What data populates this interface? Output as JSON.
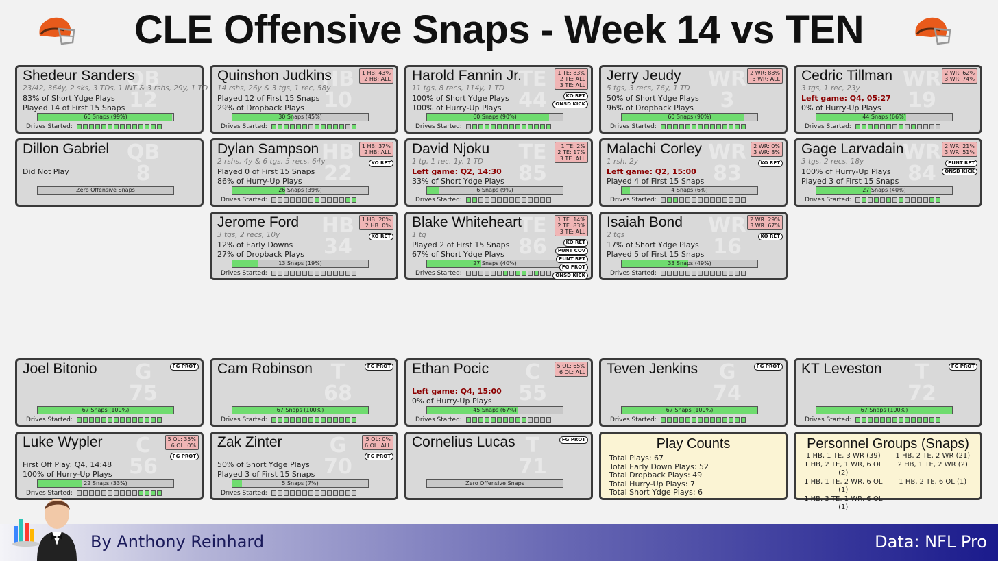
{
  "title": "CLE Offensive Snaps - Week 14 vs TEN",
  "footer": {
    "author": "By Anthony Reinhard",
    "source": "Data: NFL Pro"
  },
  "colors": {
    "bar_fill": "#6fdc6f",
    "card_bg": "#d9d9d9",
    "pos_box": "#f0b5b5",
    "info_bg": "#fbf4d4",
    "left_game": "#8b0000"
  },
  "drives_label": "Drives Started:",
  "players": [
    {
      "name": "Shedeur Sanders",
      "pos": "QB",
      "num": "12",
      "line1": "23/42, 364y, 2 sks, 3 TDs, 1 INT & 3 rshs, 29y, 1 TD",
      "line2": "83% of Short Ydge Plays",
      "line3": "Played 14 of First 15 Snaps",
      "snaps": "66 Snaps (99%)",
      "pct": 99,
      "drives": [
        1,
        1,
        1,
        1,
        1,
        1,
        1,
        1,
        1,
        1,
        1,
        1,
        1,
        1
      ],
      "posbox": [],
      "badges": []
    },
    {
      "name": "Quinshon Judkins",
      "pos": "HB",
      "num": "10",
      "line1": "14 rshs, 26y & 3 tgs, 1 rec, 58y",
      "line2": "Played 12 of First 15 Snaps",
      "line3": "29% of Dropback Plays",
      "snaps": "30 Snaps (45%)",
      "pct": 45,
      "drives": [
        1,
        1,
        1,
        1,
        1,
        1,
        0,
        1,
        1,
        1,
        1,
        1,
        0,
        1
      ],
      "posbox": [
        "1 HB: 43%",
        "2 HB: ALL"
      ],
      "badges": []
    },
    {
      "name": "Harold Fannin Jr.",
      "pos": "TE",
      "num": "44",
      "line1": "11 tgs, 8 recs, 114y, 1 TD",
      "line2": "100% of Short Ydge Plays",
      "line3": "100% of Hurry-Up Plays",
      "snaps": "60 Snaps (90%)",
      "pct": 90,
      "drives": [
        0,
        1,
        1,
        1,
        1,
        1,
        1,
        1,
        1,
        1,
        1,
        1,
        1,
        1
      ],
      "posbox": [
        "1 TE: 83%",
        "2 TE: ALL",
        "3 TE: ALL"
      ],
      "badges": [
        "KO RET",
        "ONSD KICK"
      ]
    },
    {
      "name": "Jerry Jeudy",
      "pos": "WR",
      "num": "3",
      "line1": "5 tgs, 3 recs, 76y, 1 TD",
      "line2": "50% of Short Ydge Plays",
      "line3": "96% of Dropback Plays",
      "snaps": "60 Snaps (90%)",
      "pct": 90,
      "drives": [
        1,
        1,
        1,
        1,
        1,
        1,
        1,
        1,
        1,
        1,
        1,
        1,
        1,
        1
      ],
      "posbox": [
        "2 WR: 88%",
        "3 WR: ALL"
      ],
      "badges": []
    },
    {
      "name": "Cedric Tillman",
      "pos": "WR",
      "num": "19",
      "line1": "3 tgs, 1 rec, 23y",
      "line2": "Left game: Q4, 05:27",
      "line2_red": true,
      "line3": "0% of Hurry-Up Plays",
      "snaps": "44 Snaps (66%)",
      "pct": 66,
      "drives": [
        1,
        1,
        1,
        1,
        0,
        1,
        0,
        1,
        0,
        1,
        0,
        0,
        0,
        0
      ],
      "posbox": [
        "2 WR: 62%",
        "3 WR: 74%"
      ],
      "badges": []
    },
    {
      "name": "Dillon Gabriel",
      "pos": "QB",
      "num": "8",
      "line1": "",
      "line2": "Did Not Play",
      "line3": "",
      "snaps": "Zero Offensive Snaps",
      "pct": 0,
      "drives": [],
      "posbox": [],
      "badges": []
    },
    {
      "name": "Dylan Sampson",
      "pos": "HB",
      "num": "22",
      "line1": "2 rshs, 4y & 6 tgs, 5 recs, 64y",
      "line2": "Played 0 of First 15 Snaps",
      "line3": "86% of Hurry-Up Plays",
      "snaps": "26 Snaps (39%)",
      "pct": 39,
      "drives": [
        0,
        0,
        0,
        0,
        0,
        0,
        0,
        1,
        0,
        0,
        0,
        0,
        1,
        1
      ],
      "posbox": [
        "1 HB: 37%",
        "2 HB: ALL"
      ],
      "badges": [
        "KO RET"
      ]
    },
    {
      "name": "David Njoku",
      "pos": "TE",
      "num": "85",
      "line1": "1 tg, 1 rec, 1y, 1 TD",
      "line2": "Left game: Q2, 14:30",
      "line2_red": true,
      "line3": "33% of Short Ydge Plays",
      "snaps": "6 Snaps (9%)",
      "pct": 9,
      "drives": [
        1,
        1,
        0,
        0,
        0,
        0,
        0,
        0,
        0,
        0,
        0,
        0,
        0,
        0
      ],
      "posbox": [
        "1 TE: 2%",
        "2 TE: 17%",
        "3 TE: ALL"
      ],
      "badges": []
    },
    {
      "name": "Malachi Corley",
      "pos": "WR",
      "num": "83",
      "line1": "1 rsh, 2y",
      "line2": "Left game: Q2, 15:00",
      "line2_red": true,
      "line3": "Played 4 of First 15 Snaps",
      "snaps": "4 Snaps (6%)",
      "pct": 6,
      "drives": [
        0,
        1,
        1,
        0,
        0,
        0,
        0,
        0,
        0,
        0,
        0,
        0,
        0,
        0
      ],
      "posbox": [
        "2 WR: 0%",
        "3 WR: 8%"
      ],
      "badges": [
        "KO RET"
      ]
    },
    {
      "name": "Gage Larvadain",
      "pos": "WR",
      "num": "84",
      "line1": "3 tgs, 2 recs, 18y",
      "line2": "100% of Hurry-Up Plays",
      "line3": "Played 3 of First 15 Snaps",
      "snaps": "27 Snaps (40%)",
      "pct": 40,
      "drives": [
        0,
        1,
        0,
        1,
        0,
        1,
        0,
        1,
        0,
        0,
        0,
        0,
        1,
        1
      ],
      "posbox": [
        "2 WR: 21%",
        "3 WR: 51%"
      ],
      "badges": [
        "PUNT RET",
        "ONSD KICK"
      ]
    },
    {
      "name": "Jerome Ford",
      "pos": "HB",
      "num": "34",
      "line1": "3 tgs, 2 recs, 10y",
      "line2": "12% of Early Downs",
      "line3": "27% of Dropback Plays",
      "snaps": "13 Snaps (19%)",
      "pct": 19,
      "drives": [
        0,
        0,
        0,
        0,
        0,
        0,
        0,
        0,
        0,
        0,
        0,
        0,
        0,
        0
      ],
      "posbox": [
        "1 HB: 20%",
        "2 HB: 0%"
      ],
      "badges": [
        "KO RET"
      ]
    },
    {
      "name": "Blake Whiteheart",
      "pos": "TE",
      "num": "86",
      "line1": "1 tg",
      "line2": "Played 2 of First 15 Snaps",
      "line3": "67% of Short Ydge Plays",
      "snaps": "27 Snaps (40%)",
      "pct": 40,
      "drives": [
        0,
        0,
        0,
        0,
        0,
        0,
        1,
        0,
        1,
        1,
        0,
        1,
        0,
        0
      ],
      "posbox": [
        "1 TE: 14%",
        "2 TE: 83%",
        "3 TE: ALL"
      ],
      "badges": [
        "KO RET",
        "PUNT COV",
        "PUNT RET",
        "FG PROT",
        "ONSD KICK"
      ]
    },
    {
      "name": "Isaiah Bond",
      "pos": "WR",
      "num": "16",
      "line1": "2 tgs",
      "line2": "17% of Short Ydge Plays",
      "line3": "Played 5 of First 15 Snaps",
      "snaps": "33 Snaps (49%)",
      "pct": 49,
      "drives": [
        0,
        0,
        0,
        0,
        0,
        0,
        0,
        0,
        0,
        0,
        0,
        0,
        0,
        0
      ],
      "posbox": [
        "2 WR: 29%",
        "3 WR: 67%"
      ],
      "badges": [
        "KO RET"
      ]
    },
    {
      "name": "Joel Bitonio",
      "pos": "G",
      "num": "75",
      "line1": "",
      "line2": "",
      "line3": "",
      "snaps": "67 Snaps (100%)",
      "pct": 100,
      "drives": [
        1,
        1,
        1,
        1,
        1,
        1,
        1,
        1,
        1,
        1,
        1,
        1,
        1,
        1
      ],
      "posbox": [],
      "badges": [
        "FG PROT"
      ]
    },
    {
      "name": "Cam Robinson",
      "pos": "T",
      "num": "68",
      "line1": "",
      "line2": "",
      "line3": "",
      "snaps": "67 Snaps (100%)",
      "pct": 100,
      "drives": [
        1,
        1,
        1,
        1,
        1,
        1,
        1,
        1,
        1,
        1,
        1,
        1,
        1,
        1
      ],
      "posbox": [],
      "badges": [
        "FG PROT"
      ]
    },
    {
      "name": "Ethan Pocic",
      "pos": "C",
      "num": "55",
      "line1": "",
      "line2": "Left game: Q4, 15:00",
      "line2_red": true,
      "line3": "0% of Hurry-Up Plays",
      "snaps": "45 Snaps (67%)",
      "pct": 67,
      "drives": [
        1,
        1,
        1,
        1,
        1,
        1,
        1,
        1,
        1,
        1,
        0,
        0,
        0,
        0
      ],
      "posbox": [
        "5 OL: 65%",
        "6 OL: ALL"
      ],
      "badges": []
    },
    {
      "name": "Teven Jenkins",
      "pos": "G",
      "num": "74",
      "line1": "",
      "line2": "",
      "line3": "",
      "snaps": "67 Snaps (100%)",
      "pct": 100,
      "drives": [
        1,
        1,
        1,
        1,
        1,
        1,
        1,
        1,
        1,
        1,
        1,
        1,
        1,
        1
      ],
      "posbox": [],
      "badges": [
        "FG PROT"
      ]
    },
    {
      "name": "KT Leveston",
      "pos": "T",
      "num": "72",
      "line1": "",
      "line2": "",
      "line3": "",
      "snaps": "67 Snaps (100%)",
      "pct": 100,
      "drives": [
        1,
        1,
        1,
        1,
        1,
        1,
        1,
        1,
        1,
        1,
        1,
        1,
        1,
        1
      ],
      "posbox": [],
      "badges": [
        "FG PROT"
      ]
    },
    {
      "name": "Luke Wypler",
      "pos": "C",
      "num": "56",
      "line1": "",
      "line2": "First Off Play: Q4, 14:48",
      "line3": "100% of Hurry-Up Plays",
      "snaps": "22 Snaps (33%)",
      "pct": 33,
      "drives": [
        0,
        0,
        0,
        0,
        0,
        0,
        0,
        0,
        0,
        0,
        1,
        1,
        1,
        1
      ],
      "posbox": [
        "5 OL: 35%",
        "6 OL: 0%"
      ],
      "badges": [
        "FG PROT"
      ]
    },
    {
      "name": "Zak Zinter",
      "pos": "G",
      "num": "70",
      "line1": "",
      "line2": "50% of Short Ydge Plays",
      "line3": "Played 3 of First 15 Snaps",
      "snaps": "5 Snaps (7%)",
      "pct": 7,
      "drives": [
        0,
        0,
        0,
        0,
        0,
        0,
        0,
        0,
        0,
        0,
        0,
        0,
        0,
        0
      ],
      "posbox": [
        "5 OL: 0%",
        "6 OL: ALL"
      ],
      "badges": [
        "FG PROT"
      ]
    },
    {
      "name": "Cornelius Lucas",
      "pos": "T",
      "num": "71",
      "line1": "",
      "line2": "",
      "line3": "",
      "snaps": "Zero Offensive Snaps",
      "pct": 0,
      "drives": [],
      "posbox": [],
      "badges": [
        "FG PROT"
      ]
    }
  ],
  "play_counts": {
    "title": "Play Counts",
    "rows": [
      "Total Plays: 67",
      "Total Early Down Plays: 52",
      "Total Dropback Plays: 49",
      "Total Hurry-Up Plays: 7",
      "Total Short Ydge Plays: 6"
    ]
  },
  "personnel": {
    "title": "Personnel Groups (Snaps)",
    "items": [
      "1 HB, 1 TE, 3 WR (39)",
      "1 HB, 2 TE, 2 WR (21)",
      "1 HB, 2 TE, 1 WR, 6 OL (2)",
      "2 HB, 1 TE, 2 WR (2)",
      "1 HB, 1 TE, 2 WR, 6 OL (1)",
      "1 HB, 2 TE, 6 OL (1)",
      "1 HB, 3 TE, 1 WR, 6 OL (1)",
      ""
    ]
  }
}
